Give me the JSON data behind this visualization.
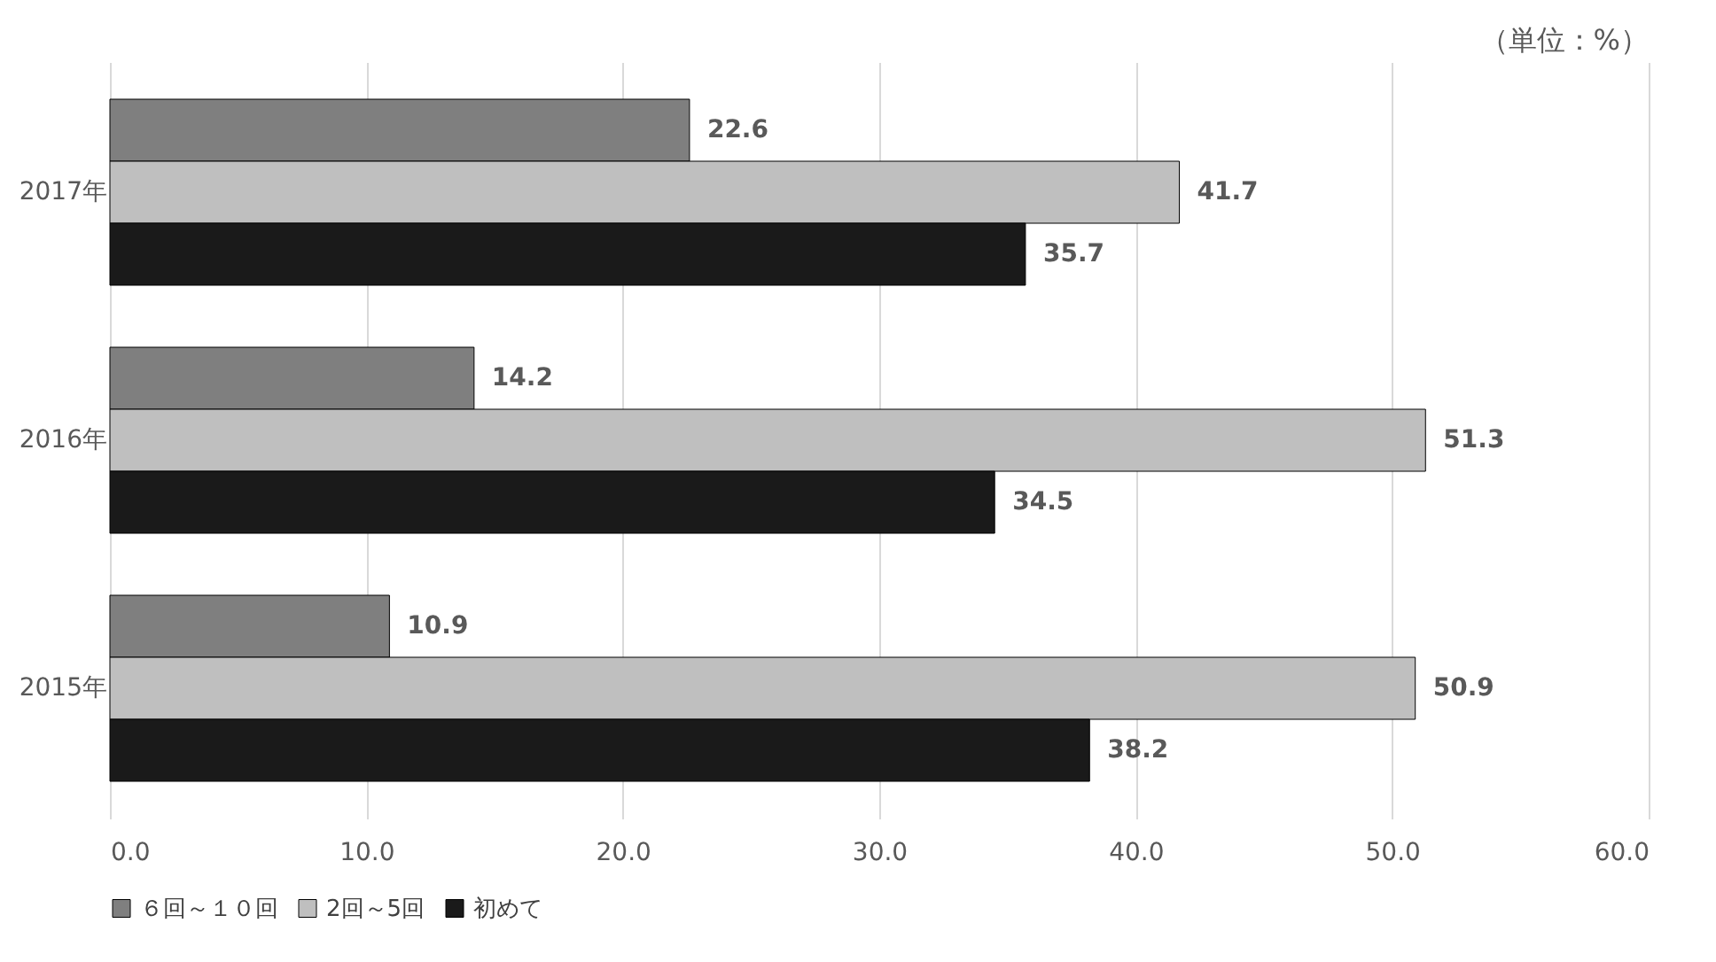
{
  "chart_data": {
    "type": "bar",
    "orientation": "horizontal",
    "categories": [
      "2017年",
      "2016年",
      "2015年"
    ],
    "series": [
      {
        "name": "６回～１０回",
        "color": "#7f7f7f",
        "values": [
          22.6,
          14.2,
          10.9
        ]
      },
      {
        "name": "2回～5回",
        "color": "#bfbfbf",
        "values": [
          41.7,
          51.3,
          50.9
        ]
      },
      {
        "name": "初めて",
        "color": "#1a1a1a",
        "values": [
          35.7,
          34.5,
          38.2
        ]
      }
    ],
    "xlim": [
      0,
      60
    ],
    "xticks": [
      {
        "value": 0,
        "label": "0.0"
      },
      {
        "value": 10,
        "label": "10.0"
      },
      {
        "value": 20,
        "label": "20.0"
      },
      {
        "value": 30,
        "label": "30.0"
      },
      {
        "value": 40,
        "label": "40.0"
      },
      {
        "value": 50,
        "label": "50.0"
      },
      {
        "value": 60,
        "label": "60.0"
      }
    ],
    "data_labels": true,
    "grid": "x",
    "legend": "bottom",
    "annotations": [
      "（単位：%）"
    ]
  }
}
